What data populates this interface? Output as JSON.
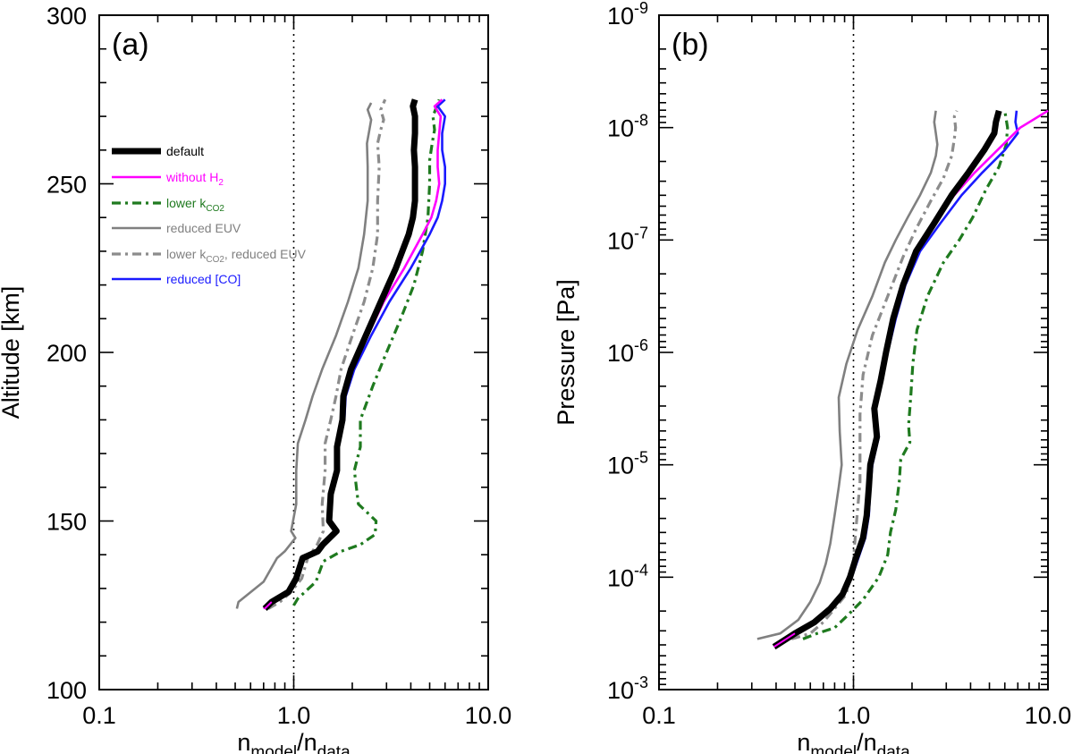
{
  "colors": {
    "default": "#000000",
    "without_h2": "#ff00ff",
    "lower_kco2": "#1f7a1f",
    "reduced_euv": "#808080",
    "lower_kco2_reduced_euv": "#8c8c8c",
    "reduced_co": "#1a1aff",
    "legend_text_gray": "#808080"
  },
  "legend": {
    "default": "default",
    "without_h2": {
      "base": "without H",
      "sub": "2"
    },
    "lower_kco2": {
      "base": "lower k",
      "sub": "CO2"
    },
    "reduced_euv": "reduced EUV",
    "lower_kco2_reduced_euv": {
      "base": "lower k",
      "sub": "CO2",
      "rest": ", reduced EUV"
    },
    "reduced_co": "reduced [CO]"
  },
  "chart_data": [
    {
      "type": "line",
      "panel_label": "(a)",
      "xscale": "log",
      "xlim": [
        0.1,
        10.0
      ],
      "xticks": [
        "0.1",
        "1.0",
        "10.0"
      ],
      "xlabel": {
        "base": "n",
        "sub1": "model",
        "sep": "/n",
        "sub2": "data"
      },
      "ylabel": "Altitude [km]",
      "ylim": [
        100,
        300
      ],
      "yticks": [
        "100",
        "150",
        "200",
        "250",
        "300"
      ],
      "reference_line_x": 1.0,
      "series": [
        {
          "key": "reduced_euv",
          "name": "reduced EUV",
          "x": [
            0.51,
            0.52,
            0.7,
            0.82,
            0.9,
            1.02,
            0.97,
            1.03,
            1.03,
            1.05,
            1.15,
            1.25,
            1.4,
            1.65,
            1.9,
            2.15,
            2.3,
            2.4,
            2.4,
            2.38,
            2.45,
            2.5,
            2.4,
            2.5
          ],
          "y": [
            124,
            126,
            132,
            139,
            141,
            145,
            147,
            155,
            165,
            173,
            180,
            187,
            195,
            205,
            215,
            225,
            235,
            245,
            255,
            262,
            266,
            269,
            272,
            274
          ]
        },
        {
          "key": "lower_kco2_reduced_euv",
          "name": "lower kCO2, reduced EUV",
          "x": [
            0.74,
            0.85,
            0.97,
            1.1,
            1.18,
            1.32,
            1.42,
            1.4,
            1.45,
            1.45,
            1.55,
            1.65,
            1.75,
            2.0,
            2.3,
            2.55,
            2.7,
            2.7,
            2.75,
            2.7,
            2.8,
            2.9,
            2.8,
            2.95
          ],
          "y": [
            124,
            126,
            129,
            133,
            139,
            143,
            147,
            155,
            165,
            173,
            180,
            187,
            195,
            205,
            215,
            225,
            235,
            245,
            255,
            262,
            266,
            269,
            272,
            275
          ]
        },
        {
          "key": "lower_kco2",
          "name": "lower kCO2",
          "x": [
            1.0,
            1.05,
            1.3,
            1.42,
            1.75,
            2.2,
            2.62,
            2.65,
            2.15,
            2.05,
            2.2,
            2.2,
            2.55,
            3.0,
            3.55,
            4.15,
            4.6,
            4.9,
            5.0,
            5.0,
            5.15,
            5.3,
            5.2,
            5.6
          ],
          "y": [
            125,
            127,
            132,
            138,
            141,
            143,
            146,
            150,
            155,
            165,
            172,
            180,
            190,
            200,
            210,
            220,
            230,
            240,
            250,
            257,
            262,
            266,
            270,
            275
          ]
        },
        {
          "key": "reduced_co",
          "name": "reduced [CO]",
          "x": [
            0.72,
            0.78,
            0.95,
            1.05,
            1.12,
            1.35,
            1.42,
            1.67,
            1.53,
            1.57,
            1.7,
            1.7,
            1.82,
            1.85,
            2.05,
            2.5,
            3.1,
            4.0,
            5.0,
            5.5,
            5.8,
            6.0,
            6.0,
            5.8,
            5.8,
            6.0,
            5.5,
            6.0
          ],
          "y": [
            124,
            126,
            129,
            133,
            139,
            141,
            143,
            147,
            150,
            158,
            165,
            172,
            180,
            187,
            195,
            205,
            215,
            225,
            235,
            240,
            245,
            250,
            255,
            260,
            265,
            270,
            273,
            275
          ]
        },
        {
          "key": "without_h2",
          "name": "without H2",
          "x": [
            0.7,
            0.76,
            0.93,
            1.02,
            1.1,
            1.32,
            1.4,
            1.65,
            1.52,
            1.55,
            1.68,
            1.68,
            1.8,
            1.82,
            2.0,
            2.4,
            2.9,
            3.7,
            4.6,
            5.1,
            5.4,
            5.6,
            5.5,
            5.5,
            5.6,
            5.7,
            5.3,
            5.8
          ],
          "y": [
            124,
            126,
            129,
            133,
            139,
            141,
            143,
            147,
            150,
            158,
            165,
            172,
            180,
            187,
            195,
            205,
            215,
            225,
            235,
            240,
            245,
            250,
            255,
            260,
            265,
            270,
            273,
            275
          ]
        },
        {
          "key": "default",
          "name": "default",
          "x": [
            0.71,
            0.77,
            0.94,
            1.03,
            1.11,
            1.33,
            1.41,
            1.66,
            1.52,
            1.55,
            1.67,
            1.67,
            1.78,
            1.8,
            1.97,
            2.35,
            2.8,
            3.35,
            3.9,
            4.1,
            4.2,
            4.2,
            4.2,
            4.15,
            4.2,
            4.2,
            4.1,
            4.2
          ],
          "y": [
            124,
            126,
            129,
            133,
            139,
            141,
            143,
            147,
            150,
            158,
            165,
            172,
            180,
            187,
            195,
            205,
            215,
            225,
            235,
            240,
            245,
            250,
            255,
            260,
            265,
            270,
            273,
            275
          ]
        }
      ],
      "legend_position": "upper-left"
    },
    {
      "type": "line",
      "panel_label": "(b)",
      "xscale": "log",
      "xlim": [
        0.1,
        10.0
      ],
      "xticks": [
        "0.1",
        "1.0",
        "10.0"
      ],
      "xlabel": {
        "base": "n",
        "sub1": "model",
        "sep": "/n",
        "sub2": "data"
      },
      "ylabel": "Pressure [Pa]",
      "yscale": "log",
      "ylim": [
        0.001,
        1e-09
      ],
      "yticks": [
        {
          "base": "10",
          "exp": "-3"
        },
        {
          "base": "10",
          "exp": "-4"
        },
        {
          "base": "10",
          "exp": "-5"
        },
        {
          "base": "10",
          "exp": "-6"
        },
        {
          "base": "10",
          "exp": "-7"
        },
        {
          "base": "10",
          "exp": "-8"
        },
        {
          "base": "10",
          "exp": "-9"
        }
      ],
      "reference_line_x": 1.0,
      "series": [
        {
          "key": "reduced_euv",
          "name": "reduced EUV",
          "p_exp": [
            -3.45,
            -3.5,
            -3.62,
            -3.78,
            -3.95,
            -4.12,
            -4.3,
            -4.55,
            -4.8,
            -5.0,
            -5.3,
            -5.6,
            -5.9,
            -6.2,
            -6.5,
            -6.8,
            -7.0,
            -7.2,
            -7.4,
            -7.6,
            -7.75,
            -7.85,
            -7.95,
            -8.05,
            -8.15
          ],
          "x": [
            0.32,
            0.42,
            0.52,
            0.6,
            0.67,
            0.72,
            0.76,
            0.8,
            0.84,
            0.87,
            0.85,
            0.84,
            0.92,
            1.05,
            1.25,
            1.45,
            1.65,
            1.9,
            2.2,
            2.5,
            2.65,
            2.7,
            2.65,
            2.6,
            2.65
          ]
        },
        {
          "key": "lower_kco2_reduced_euv",
          "name": "lower kCO2, reduced EUV",
          "p_exp": [
            -3.45,
            -3.5,
            -3.6,
            -3.72,
            -3.85,
            -4.0,
            -4.15,
            -4.35,
            -4.6,
            -4.85,
            -5.15,
            -5.45,
            -5.8,
            -6.15,
            -6.5,
            -6.85,
            -7.1,
            -7.35,
            -7.55,
            -7.75,
            -7.9,
            -8.0,
            -8.1,
            -8.15
          ],
          "x": [
            0.48,
            0.6,
            0.7,
            0.8,
            0.92,
            0.95,
            1.0,
            1.02,
            1.05,
            1.08,
            1.08,
            1.08,
            1.12,
            1.25,
            1.5,
            1.8,
            2.1,
            2.5,
            2.9,
            3.2,
            3.3,
            3.35,
            3.3,
            3.4
          ]
        },
        {
          "key": "lower_kco2",
          "name": "lower kCO2",
          "p_exp": [
            -3.45,
            -3.5,
            -3.55,
            -3.65,
            -3.8,
            -4.0,
            -4.2,
            -4.4,
            -4.6,
            -4.85,
            -5.05,
            -5.2,
            -5.35,
            -5.6,
            -5.9,
            -6.2,
            -6.5,
            -6.8,
            -7.0,
            -7.2,
            -7.45,
            -7.65,
            -7.85,
            -8.0,
            -8.15
          ],
          "x": [
            0.55,
            0.65,
            0.8,
            0.92,
            1.12,
            1.35,
            1.5,
            1.55,
            1.65,
            1.72,
            1.75,
            1.95,
            1.92,
            1.97,
            2.02,
            2.12,
            2.4,
            2.9,
            3.5,
            4.1,
            4.8,
            5.6,
            6.1,
            6.2,
            6.0
          ]
        },
        {
          "key": "reduced_co",
          "name": "reduced [CO]",
          "p_exp": [
            -3.38,
            -3.5,
            -3.6,
            -3.72,
            -3.85,
            -4.0,
            -4.15,
            -4.35,
            -4.55,
            -4.8,
            -5.0,
            -5.25,
            -5.5,
            -5.75,
            -6.0,
            -6.3,
            -6.6,
            -6.9,
            -7.15,
            -7.4,
            -7.6,
            -7.8,
            -7.95,
            -8.05,
            -8.15
          ],
          "x": [
            0.4,
            0.52,
            0.65,
            0.78,
            0.9,
            0.98,
            1.05,
            1.15,
            1.2,
            1.22,
            1.25,
            1.35,
            1.3,
            1.4,
            1.5,
            1.65,
            1.85,
            2.2,
            2.8,
            3.6,
            4.6,
            6.0,
            7.0,
            6.8,
            6.9
          ]
        },
        {
          "key": "without_h2",
          "name": "without H2",
          "p_exp": [
            -3.38,
            -3.5,
            -3.6,
            -3.72,
            -3.85,
            -4.0,
            -4.15,
            -4.35,
            -4.55,
            -4.8,
            -5.0,
            -5.25,
            -5.5,
            -5.75,
            -6.0,
            -6.3,
            -6.6,
            -6.9,
            -7.15,
            -7.4,
            -7.6,
            -7.8,
            -8.0,
            -8.15
          ],
          "x": [
            0.39,
            0.5,
            0.63,
            0.76,
            0.88,
            0.96,
            1.02,
            1.12,
            1.17,
            1.2,
            1.22,
            1.32,
            1.28,
            1.38,
            1.47,
            1.6,
            1.8,
            2.1,
            2.6,
            3.3,
            4.2,
            5.5,
            7.2,
            10.0
          ]
        },
        {
          "key": "default",
          "name": "default",
          "p_exp": [
            -3.38,
            -3.5,
            -3.6,
            -3.72,
            -3.85,
            -4.0,
            -4.15,
            -4.35,
            -4.55,
            -4.8,
            -5.0,
            -5.25,
            -5.5,
            -5.75,
            -6.0,
            -6.3,
            -6.6,
            -6.9,
            -7.15,
            -7.4,
            -7.6,
            -7.8,
            -7.95,
            -8.05,
            -8.15
          ],
          "x": [
            0.39,
            0.5,
            0.63,
            0.76,
            0.88,
            0.96,
            1.02,
            1.12,
            1.17,
            1.2,
            1.22,
            1.32,
            1.28,
            1.38,
            1.47,
            1.6,
            1.8,
            2.1,
            2.6,
            3.2,
            3.9,
            4.7,
            5.3,
            5.4,
            5.6
          ]
        }
      ]
    }
  ]
}
